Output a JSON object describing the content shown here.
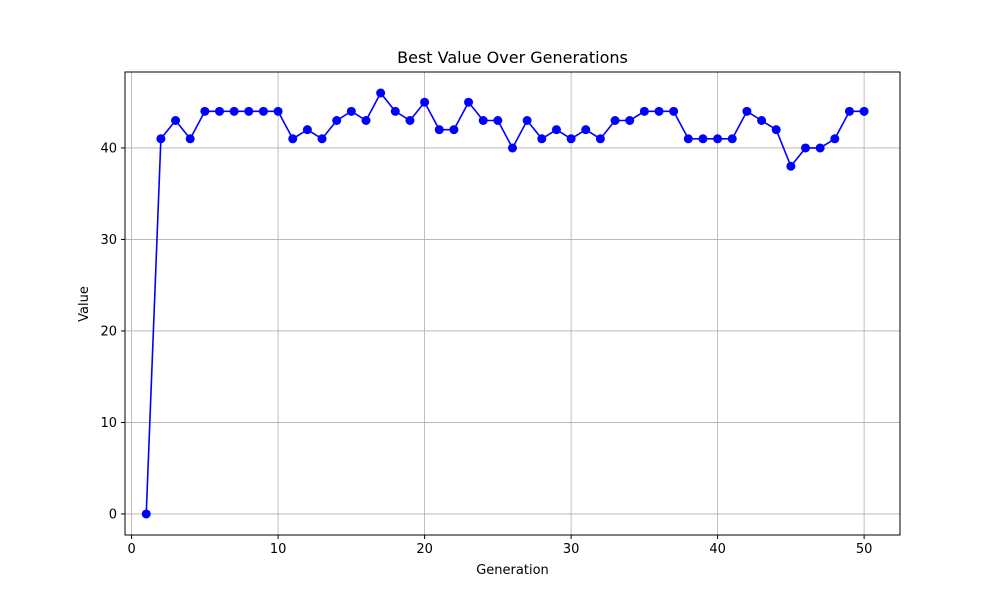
{
  "chart_data": {
    "type": "line",
    "title": "Best Value Over Generations",
    "xlabel": "Generation",
    "ylabel": "Value",
    "xlim": [
      -0.45,
      52.45
    ],
    "ylim": [
      -2.3,
      48.3
    ],
    "xticks": [
      0,
      10,
      20,
      30,
      40,
      50
    ],
    "yticks": [
      0,
      10,
      20,
      30,
      40
    ],
    "grid": true,
    "colors": {
      "line": "#0000ff",
      "marker": "#0000ff",
      "grid": "#b0b0b0",
      "axes": "#000000"
    },
    "series": [
      {
        "x": [
          1,
          2,
          3,
          4,
          5,
          6,
          7,
          8,
          9,
          10,
          11,
          12,
          13,
          14,
          15,
          16,
          17,
          18,
          19,
          20,
          21,
          22,
          23,
          24,
          25,
          26,
          27,
          28,
          29,
          30,
          31,
          32,
          33,
          34,
          35,
          36,
          37,
          38,
          39,
          40,
          41,
          42,
          43,
          44,
          45,
          46,
          47,
          48,
          49,
          50
        ],
        "y": [
          0,
          41,
          43,
          41,
          44,
          44,
          44,
          44,
          44,
          44,
          41,
          42,
          41,
          43,
          44,
          43,
          46,
          44,
          43,
          45,
          42,
          42,
          45,
          43,
          43,
          40,
          43,
          41,
          42,
          41,
          42,
          41,
          43,
          43,
          44,
          44,
          44,
          41,
          41,
          41,
          41,
          44,
          43,
          42,
          38,
          40,
          40,
          41,
          44,
          44
        ]
      }
    ]
  }
}
